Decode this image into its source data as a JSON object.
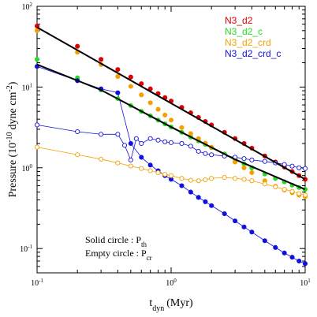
{
  "chart_data": {
    "type": "scatter",
    "xlabel": "t",
    "xlabel_sub": "dyn",
    "xlabel_unit": "(Myr)",
    "ylabel": "Pressure (10",
    "ylabel_exp": "-10",
    "ylabel_unit": "dyne cm",
    "ylabel_unit_exp": "-2",
    "xscale": "log",
    "yscale": "log",
    "xlim": [
      0.1,
      10
    ],
    "ylim": [
      0.05,
      100
    ],
    "xtick_labels": [
      {
        "value": 0.1,
        "base": "10",
        "exp": "-1"
      },
      {
        "value": 1,
        "base": "10",
        "exp": "0"
      },
      {
        "value": 10,
        "base": "10",
        "exp": "1"
      }
    ],
    "ytick_labels": [
      {
        "value": 0.1,
        "base": "10",
        "exp": "-1"
      },
      {
        "value": 1,
        "base": "10",
        "exp": "0"
      },
      {
        "value": 10,
        "base": "10",
        "exp": "1"
      },
      {
        "value": 100,
        "base": "10",
        "exp": "2"
      }
    ],
    "legend_position": "top-right",
    "legend": [
      {
        "name": "N3_d2",
        "color": "#e00000"
      },
      {
        "name": "N3_d2_c",
        "color": "#22dd22"
      },
      {
        "name": "N3_d2_crd",
        "color": "#f5a000"
      },
      {
        "name": "N3_d2_crd_c",
        "color": "#1010e0"
      }
    ],
    "annotation": [
      {
        "text": "Solid circle : P",
        "sub": "th"
      },
      {
        "text": "Empty circle : P",
        "sub": "cr"
      }
    ],
    "series": [
      {
        "key": "red",
        "color": "#e00000",
        "marker": "filled",
        "connected": false,
        "points": [
          [
            0.1,
            57
          ],
          [
            0.2,
            32
          ],
          [
            0.3,
            22
          ],
          [
            0.4,
            16.5
          ],
          [
            0.5,
            13.3
          ],
          [
            0.6,
            11
          ],
          [
            0.7,
            9.5
          ],
          [
            0.8,
            8.3
          ],
          [
            0.9,
            7.4
          ],
          [
            1.0,
            6.7
          ],
          [
            1.2,
            5.6
          ],
          [
            1.4,
            4.8
          ],
          [
            1.6,
            4.2
          ],
          [
            1.8,
            3.75
          ],
          [
            2.0,
            3.4
          ],
          [
            2.5,
            2.75
          ],
          [
            3.0,
            2.3
          ],
          [
            3.5,
            2.0
          ],
          [
            4.0,
            1.75
          ],
          [
            5.0,
            1.4
          ],
          [
            6.0,
            1.18
          ],
          [
            7.0,
            1.02
          ],
          [
            8.0,
            0.9
          ],
          [
            9.0,
            0.8
          ],
          [
            10.0,
            0.72
          ]
        ]
      },
      {
        "key": "green",
        "color": "#22dd22",
        "marker": "filled",
        "connected": false,
        "points": [
          [
            0.1,
            22
          ],
          [
            0.2,
            13
          ],
          [
            0.3,
            9.2
          ],
          [
            0.4,
            7.2
          ],
          [
            0.5,
            5.9
          ],
          [
            0.6,
            5.0
          ],
          [
            0.7,
            4.4
          ],
          [
            0.8,
            3.9
          ],
          [
            0.9,
            3.5
          ],
          [
            1.0,
            3.2
          ],
          [
            1.2,
            2.75
          ],
          [
            1.4,
            2.4
          ],
          [
            1.6,
            2.15
          ],
          [
            1.8,
            1.95
          ],
          [
            2.0,
            1.78
          ],
          [
            2.5,
            1.48
          ],
          [
            3.0,
            1.27
          ],
          [
            3.5,
            1.12
          ],
          [
            4.0,
            1.0
          ],
          [
            5.0,
            0.84
          ],
          [
            6.0,
            0.74
          ],
          [
            7.0,
            0.67
          ],
          [
            8.0,
            0.61
          ],
          [
            9.0,
            0.57
          ],
          [
            10.0,
            0.54
          ]
        ]
      },
      {
        "key": "orange",
        "color": "#f5a000",
        "marker": "filled",
        "connected": false,
        "points": [
          [
            0.1,
            50
          ],
          [
            0.2,
            27
          ],
          [
            0.3,
            19
          ],
          [
            0.4,
            13.5
          ],
          [
            0.5,
            10.2
          ],
          [
            0.6,
            8.0
          ],
          [
            0.7,
            6.4
          ],
          [
            0.8,
            5.3
          ],
          [
            0.9,
            4.5
          ],
          [
            1.0,
            3.9
          ],
          [
            1.2,
            3.15
          ],
          [
            1.4,
            2.65
          ],
          [
            1.6,
            2.3
          ],
          [
            1.8,
            2.02
          ],
          [
            2.0,
            1.8
          ],
          [
            2.5,
            1.42
          ],
          [
            3.0,
            1.18
          ],
          [
            3.5,
            1.0
          ],
          [
            4.0,
            0.87
          ],
          [
            5.0,
            0.69
          ],
          [
            6.0,
            0.59
          ],
          [
            7.0,
            0.53
          ],
          [
            8.0,
            0.49
          ],
          [
            9.0,
            0.46
          ],
          [
            10.0,
            0.44
          ]
        ]
      },
      {
        "key": "blue",
        "color": "#1010e0",
        "marker": "filled",
        "connected": true,
        "points": [
          [
            0.1,
            18
          ],
          [
            0.2,
            12
          ],
          [
            0.3,
            9.5
          ],
          [
            0.4,
            8.5
          ],
          [
            0.5,
            2.0
          ],
          [
            0.6,
            1.35
          ],
          [
            0.7,
            1.08
          ],
          [
            0.8,
            0.92
          ],
          [
            0.9,
            0.8
          ],
          [
            1.0,
            0.72
          ],
          [
            1.2,
            0.6
          ],
          [
            1.4,
            0.5
          ],
          [
            1.6,
            0.43
          ],
          [
            1.8,
            0.38
          ],
          [
            2.0,
            0.34
          ],
          [
            2.5,
            0.27
          ],
          [
            3.0,
            0.22
          ],
          [
            3.5,
            0.185
          ],
          [
            4.0,
            0.16
          ],
          [
            5.0,
            0.125
          ],
          [
            6.0,
            0.103
          ],
          [
            7.0,
            0.088
          ],
          [
            8.0,
            0.078
          ],
          [
            9.0,
            0.07
          ],
          [
            10.0,
            0.065
          ]
        ]
      },
      {
        "key": "blue-empty",
        "color": "#1010e0",
        "marker": "empty",
        "connected": true,
        "points": [
          [
            0.1,
            3.4
          ],
          [
            0.2,
            2.8
          ],
          [
            0.3,
            2.6
          ],
          [
            0.4,
            2.6
          ],
          [
            0.45,
            1.9
          ],
          [
            0.5,
            1.25
          ],
          [
            0.55,
            2.3
          ],
          [
            0.6,
            2.0
          ],
          [
            0.7,
            2.3
          ],
          [
            0.8,
            2.2
          ],
          [
            0.9,
            2.1
          ],
          [
            1.0,
            2.05
          ],
          [
            1.2,
            2.0
          ],
          [
            1.4,
            1.85
          ],
          [
            1.6,
            1.6
          ],
          [
            1.8,
            1.5
          ],
          [
            2.0,
            1.45
          ],
          [
            2.5,
            1.4
          ],
          [
            3.0,
            1.35
          ],
          [
            3.5,
            1.3
          ],
          [
            4.0,
            1.25
          ],
          [
            5.0,
            1.2
          ],
          [
            6.0,
            1.15
          ],
          [
            7.0,
            1.1
          ],
          [
            8.0,
            1.05
          ],
          [
            9.0,
            1.0
          ],
          [
            10.0,
            0.98
          ]
        ]
      },
      {
        "key": "orange-empty",
        "color": "#f5a000",
        "marker": "empty",
        "connected": true,
        "points": [
          [
            0.1,
            1.8
          ],
          [
            0.2,
            1.45
          ],
          [
            0.3,
            1.28
          ],
          [
            0.4,
            1.15
          ],
          [
            0.5,
            1.05
          ],
          [
            0.6,
            0.98
          ],
          [
            0.7,
            0.92
          ],
          [
            0.8,
            0.87
          ],
          [
            0.9,
            0.83
          ],
          [
            1.0,
            0.8
          ],
          [
            1.2,
            0.74
          ],
          [
            1.4,
            0.7
          ],
          [
            1.6,
            0.69
          ],
          [
            1.8,
            0.71
          ],
          [
            2.0,
            0.74
          ],
          [
            2.5,
            0.76
          ],
          [
            3.0,
            0.74
          ],
          [
            3.5,
            0.72
          ],
          [
            4.0,
            0.69
          ],
          [
            5.0,
            0.63
          ],
          [
            6.0,
            0.58
          ],
          [
            7.0,
            0.54
          ],
          [
            8.0,
            0.51
          ],
          [
            9.0,
            0.48
          ],
          [
            10.0,
            0.46
          ]
        ]
      },
      {
        "key": "fit-top",
        "color": "#000000",
        "marker": "line",
        "connected": true,
        "points": [
          [
            0.1,
            55
          ],
          [
            10,
            0.72
          ]
        ]
      },
      {
        "key": "fit-bottom",
        "color": "#000000",
        "marker": "line",
        "connected": true,
        "points": [
          [
            0.1,
            19
          ],
          [
            0.3,
            9.2
          ],
          [
            1,
            3.2
          ],
          [
            3,
            1.27
          ],
          [
            10,
            0.54
          ]
        ]
      }
    ]
  }
}
